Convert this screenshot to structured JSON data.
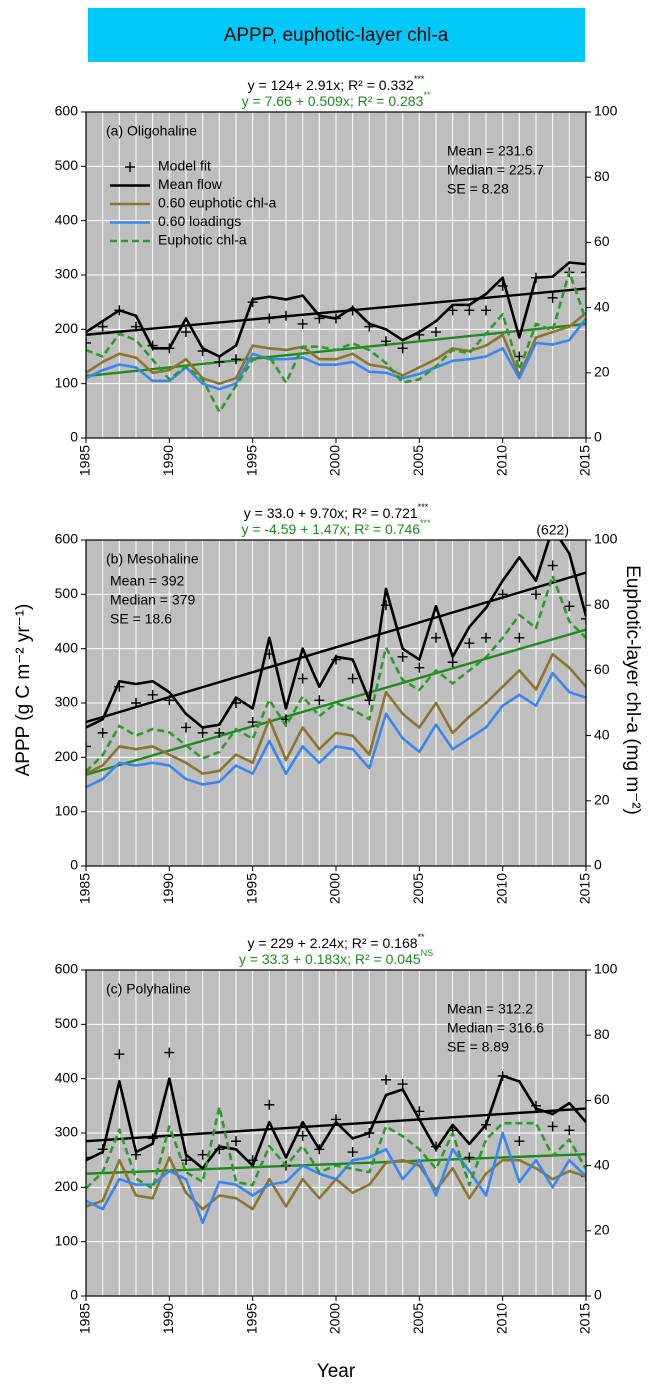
{
  "title": "APPP, euphotic-layer chl-a",
  "y_label": "APPP (g C m⁻² yr⁻¹)",
  "y2_label": "Euphotic-layer chl-a (mg m⁻²)",
  "x_label": "Year",
  "chart_data": [
    {
      "type": "line",
      "panel_label": "(a) Oligohaline",
      "equations": [
        {
          "text": "y = 124+ 2.91x; R² = 0.332",
          "significance": "***",
          "color": "#000000"
        },
        {
          "text": "y = 7.66 + 0.509x; R² = 0.283",
          "significance": "**",
          "color": "#1e8a1e"
        }
      ],
      "stats": [
        "Mean = 231.6",
        "Median = 225.7",
        "SE = 8.28"
      ],
      "legend": "upper left",
      "grid": true,
      "xlim": [
        1985,
        2015
      ],
      "xticks": [
        1985,
        1990,
        1995,
        2000,
        2005,
        2010,
        2015
      ],
      "ylim": [
        0,
        600
      ],
      "yticks": [
        0,
        100,
        200,
        300,
        400,
        500,
        600
      ],
      "y2lim": [
        0,
        100
      ],
      "y2ticks": [
        0,
        20,
        40,
        60,
        80,
        100
      ],
      "x": [
        1985,
        1986,
        1987,
        1988,
        1989,
        1990,
        1991,
        1992,
        1993,
        1994,
        1995,
        1996,
        1997,
        1998,
        1999,
        2000,
        2001,
        2002,
        2003,
        2004,
        2005,
        2006,
        2007,
        2008,
        2009,
        2010,
        2011,
        2012,
        2013,
        2014,
        2015
      ],
      "series": [
        {
          "name": "Model fit",
          "color": "#000000",
          "marker": "plus",
          "values": [
            175,
            205,
            235,
            205,
            170,
            165,
            195,
            160,
            140,
            145,
            250,
            220,
            225,
            210,
            220,
            220,
            235,
            205,
            178,
            165,
            190,
            195,
            235,
            235,
            235,
            280,
            150,
            295,
            258,
            305,
            305
          ]
        },
        {
          "name": "Mean flow",
          "color": "#000000",
          "values": [
            195,
            215,
            235,
            225,
            165,
            165,
            220,
            165,
            150,
            170,
            255,
            260,
            255,
            262,
            225,
            220,
            240,
            210,
            200,
            180,
            195,
            215,
            245,
            245,
            265,
            295,
            185,
            295,
            297,
            323,
            320
          ]
        },
        {
          "name": "0.60 euphotic chl-a",
          "color": "#8b7530",
          "values": [
            120,
            140,
            155,
            148,
            120,
            125,
            145,
            110,
            100,
            110,
            170,
            165,
            162,
            168,
            145,
            145,
            155,
            135,
            130,
            115,
            130,
            145,
            165,
            160,
            170,
            190,
            115,
            185,
            195,
            205,
            230
          ]
        },
        {
          "name": "0.60 loadings",
          "color": "#3a86f0",
          "values": [
            110,
            125,
            135,
            130,
            105,
            105,
            130,
            100,
            90,
            100,
            155,
            145,
            145,
            148,
            135,
            135,
            140,
            122,
            120,
            110,
            118,
            130,
            142,
            145,
            150,
            165,
            110,
            175,
            172,
            180,
            220
          ]
        },
        {
          "name": "Euphotic chl-a",
          "color": "#2e9a2e",
          "dashed": true,
          "axis": "y2",
          "values": [
            27,
            25,
            32,
            30,
            24,
            18,
            22,
            18,
            8,
            16,
            24,
            25,
            17,
            28,
            28,
            27,
            29,
            27,
            23,
            17,
            18,
            22,
            27,
            26,
            32,
            38,
            21,
            35,
            33,
            51,
            36
          ]
        }
      ],
      "trends": [
        {
          "color": "#000000",
          "x": [
            1985,
            2015
          ],
          "values": [
            190,
            275
          ]
        },
        {
          "color": "#1e8a1e",
          "axis": "y2",
          "x": [
            1985,
            2015
          ],
          "values": [
            19,
            35
          ]
        }
      ]
    },
    {
      "type": "line",
      "panel_label": "(b) Mesohaline",
      "equations": [
        {
          "text": "y = 33.0 + 9.70x; R² = 0.721",
          "significance": "***",
          "color": "#000000"
        },
        {
          "text": "y = -4.59 + 1.47x; R² = 0.746",
          "significance": "***",
          "color": "#1e8a1e"
        }
      ],
      "stats": [
        "Mean = 392",
        "Median = 379",
        "SE = 18.6"
      ],
      "stats_corner": "left",
      "annotations": [
        {
          "text": "(622)",
          "x": 2013
        }
      ],
      "grid": true,
      "xlim": [
        1985,
        2015
      ],
      "xticks": [
        1985,
        1990,
        1995,
        2000,
        2005,
        2010,
        2015
      ],
      "ylim": [
        0,
        600
      ],
      "yticks": [
        0,
        100,
        200,
        300,
        400,
        500,
        600
      ],
      "y2lim": [
        0,
        100
      ],
      "y2ticks": [
        0,
        20,
        40,
        60,
        80,
        100
      ],
      "x": [
        1985,
        1986,
        1987,
        1988,
        1989,
        1990,
        1991,
        1992,
        1993,
        1994,
        1995,
        1996,
        1997,
        1998,
        1999,
        2000,
        2001,
        2002,
        2003,
        2004,
        2005,
        2006,
        2007,
        2008,
        2009,
        2010,
        2011,
        2012,
        2013,
        2014,
        2015
      ],
      "series": [
        {
          "color": "#000000",
          "marker": "plus",
          "values": [
            220,
            245,
            330,
            300,
            315,
            305,
            255,
            245,
            245,
            300,
            265,
            390,
            270,
            345,
            305,
            380,
            345,
            305,
            480,
            385,
            365,
            420,
            375,
            410,
            420,
            500,
            420,
            500,
            553,
            478,
            455
          ]
        },
        {
          "color": "#000000",
          "values": [
            255,
            270,
            340,
            335,
            340,
            320,
            280,
            255,
            260,
            310,
            290,
            420,
            290,
            400,
            330,
            385,
            380,
            305,
            510,
            400,
            380,
            478,
            385,
            440,
            475,
            525,
            568,
            525,
            622,
            575,
            460
          ]
        },
        {
          "color": "#8b7530",
          "values": [
            170,
            185,
            220,
            215,
            220,
            205,
            190,
            170,
            175,
            205,
            190,
            270,
            195,
            255,
            215,
            245,
            240,
            205,
            320,
            280,
            255,
            300,
            245,
            275,
            300,
            330,
            360,
            325,
            390,
            365,
            330
          ]
        },
        {
          "color": "#3a86f0",
          "values": [
            145,
            160,
            190,
            185,
            190,
            185,
            160,
            150,
            155,
            185,
            170,
            230,
            170,
            220,
            190,
            220,
            215,
            180,
            280,
            235,
            210,
            260,
            215,
            235,
            255,
            295,
            315,
            295,
            355,
            320,
            310
          ]
        },
        {
          "color": "#2e9a2e",
          "dashed": true,
          "axis": "y2",
          "values": [
            29,
            34,
            43,
            40,
            42,
            41,
            37,
            33,
            35,
            42,
            39,
            51,
            43,
            52,
            46,
            50,
            48,
            45,
            67,
            57,
            54,
            60,
            56,
            60,
            64,
            70,
            77,
            73,
            89,
            75,
            70
          ]
        }
      ],
      "trends": [
        {
          "color": "#000000",
          "x": [
            1985,
            2015
          ],
          "values": [
            265,
            540
          ]
        },
        {
          "color": "#1e8a1e",
          "axis": "y2",
          "x": [
            1985,
            2015
          ],
          "values": [
            28,
            72.5
          ]
        }
      ]
    },
    {
      "type": "line",
      "panel_label": "(c) Polyhaline",
      "equations": [
        {
          "text": "y = 229 + 2.24x; R² = 0.168",
          "significance": "**",
          "color": "#000000"
        },
        {
          "text": "y = 33.3 + 0.183x; R² = 0.045",
          "significance": "NS",
          "color": "#1e8a1e"
        }
      ],
      "stats": [
        "Mean = 312.2",
        "Median = 316.6",
        "SE = 8.89"
      ],
      "grid": true,
      "xlim": [
        1985,
        2015
      ],
      "xticks": [
        1985,
        1990,
        1995,
        2000,
        2005,
        2010,
        2015
      ],
      "ylim": [
        0,
        600
      ],
      "yticks": [
        0,
        100,
        200,
        300,
        400,
        500,
        600
      ],
      "y2lim": [
        0,
        100
      ],
      "y2ticks": [
        0,
        20,
        40,
        60,
        80,
        100
      ],
      "x": [
        1985,
        1986,
        1987,
        1988,
        1989,
        1990,
        1991,
        1992,
        1993,
        1994,
        1995,
        1996,
        1997,
        1998,
        1999,
        2000,
        2001,
        2002,
        2003,
        2004,
        2005,
        2006,
        2007,
        2008,
        2009,
        2010,
        2011,
        2012,
        2013,
        2014,
        2015
      ],
      "series": [
        {
          "color": "#000000",
          "marker": "plus",
          "values": [
            255,
            270,
            445,
            260,
            290,
            448,
            250,
            260,
            270,
            285,
            250,
            352,
            240,
            295,
            270,
            325,
            265,
            300,
            398,
            390,
            340,
            275,
            305,
            255,
            315,
            405,
            285,
            350,
            312,
            305,
            220
          ]
        },
        {
          "color": "#000000",
          "values": [
            250,
            265,
            395,
            265,
            280,
            400,
            260,
            235,
            275,
            270,
            240,
            320,
            255,
            320,
            270,
            320,
            290,
            300,
            370,
            380,
            325,
            270,
            315,
            280,
            315,
            405,
            395,
            345,
            335,
            355,
            320
          ]
        },
        {
          "color": "#8b7530",
          "values": [
            165,
            175,
            250,
            185,
            180,
            255,
            190,
            160,
            185,
            180,
            160,
            215,
            165,
            215,
            180,
            215,
            190,
            205,
            245,
            250,
            240,
            195,
            235,
            180,
            225,
            250,
            250,
            235,
            215,
            230,
            220
          ]
        },
        {
          "color": "#3a86f0",
          "values": [
            175,
            160,
            215,
            205,
            205,
            230,
            215,
            135,
            210,
            205,
            185,
            205,
            210,
            240,
            225,
            215,
            250,
            255,
            270,
            215,
            250,
            185,
            270,
            230,
            185,
            300,
            210,
            250,
            200,
            250,
            220
          ]
        },
        {
          "color": "#2e9a2e",
          "dashed": true,
          "axis": "y2",
          "values": [
            33,
            38,
            51,
            36,
            33,
            52,
            38,
            35,
            58,
            35,
            34,
            46,
            40,
            46,
            38,
            40,
            39,
            38,
            52,
            49,
            45,
            39,
            50,
            34,
            48,
            53,
            53,
            53,
            43,
            48,
            39
          ]
        }
      ],
      "trends": [
        {
          "color": "#000000",
          "x": [
            1985,
            2015
          ],
          "values": [
            285,
            345
          ]
        },
        {
          "color": "#1e8a1e",
          "axis": "y2",
          "x": [
            1985,
            2015
          ],
          "values": [
            37.5,
            43.5
          ]
        }
      ]
    }
  ]
}
